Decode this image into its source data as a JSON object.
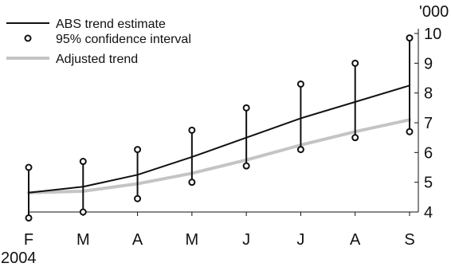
{
  "chart_data": {
    "type": "line",
    "title": "",
    "xlabel": "",
    "ylabel": "",
    "unit_label": "'000",
    "year_label": "2004",
    "categories": [
      "F",
      "M",
      "A",
      "M",
      "J",
      "J",
      "A",
      "S"
    ],
    "ylim": [
      4,
      10
    ],
    "yticks": [
      4,
      5,
      6,
      7,
      8,
      9,
      10
    ],
    "axis_side": "right",
    "grid": false,
    "legend_position": "top-left",
    "series": [
      {
        "name": "ABS trend estimate",
        "type": "line",
        "color": "#111111",
        "values": [
          4.65,
          4.85,
          5.25,
          5.85,
          6.5,
          7.15,
          7.7,
          8.25
        ]
      },
      {
        "name": "95% confidence interval",
        "type": "errorbar",
        "color": "#111111",
        "lower": [
          3.8,
          4.0,
          4.45,
          5.0,
          5.55,
          6.1,
          6.5,
          6.7
        ],
        "upper": [
          5.5,
          5.7,
          6.1,
          6.75,
          7.5,
          8.3,
          9.0,
          9.85
        ]
      },
      {
        "name": "Adjusted trend",
        "type": "line",
        "color": "#c4c4c4",
        "values": [
          4.65,
          4.7,
          4.95,
          5.3,
          5.75,
          6.25,
          6.7,
          7.1
        ]
      }
    ]
  }
}
